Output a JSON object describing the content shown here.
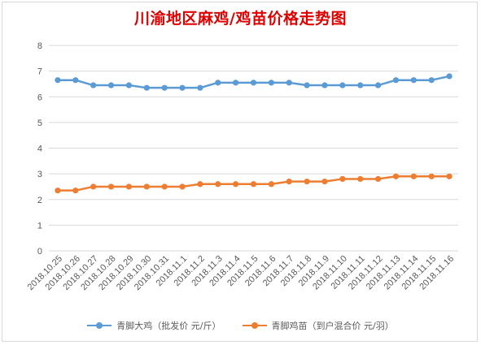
{
  "chart_data": {
    "type": "line",
    "title": "川渝地区麻鸡/鸡苗价格走势图",
    "categories": [
      "2018.10.25",
      "2018.10.26",
      "2018.10.27",
      "2018.10.28",
      "2018.10.29",
      "2018.10.30",
      "2018.10.31",
      "2018.11.1",
      "2018.11.2",
      "2018.11.3",
      "2018.11.4",
      "2018.11.5",
      "2018.11.6",
      "2018.11.7",
      "2018.11.8",
      "2018.11.9",
      "2018.11.10",
      "2018.11.11",
      "2018.11.12",
      "2018.11.13",
      "2018.11.14",
      "2018.11.15",
      "2018.11.16"
    ],
    "series": [
      {
        "name": "青脚大鸡（批发价 元/斤）",
        "color": "#5b9bd5",
        "values": [
          6.65,
          6.65,
          6.45,
          6.45,
          6.45,
          6.35,
          6.35,
          6.35,
          6.35,
          6.55,
          6.55,
          6.55,
          6.55,
          6.55,
          6.45,
          6.45,
          6.45,
          6.45,
          6.45,
          6.65,
          6.65,
          6.65,
          6.8
        ]
      },
      {
        "name": "青脚鸡苗（到户混合价 元/羽）",
        "color": "#ed7d31",
        "values": [
          2.35,
          2.35,
          2.5,
          2.5,
          2.5,
          2.5,
          2.5,
          2.5,
          2.6,
          2.6,
          2.6,
          2.6,
          2.6,
          2.7,
          2.7,
          2.7,
          2.8,
          2.8,
          2.8,
          2.9,
          2.9,
          2.9,
          2.9
        ]
      }
    ],
    "yticks": [
      "0",
      "1",
      "2",
      "3",
      "4",
      "5",
      "6",
      "7",
      "8"
    ],
    "ylim": [
      0,
      8
    ],
    "grid": true,
    "legend": "bottom"
  }
}
